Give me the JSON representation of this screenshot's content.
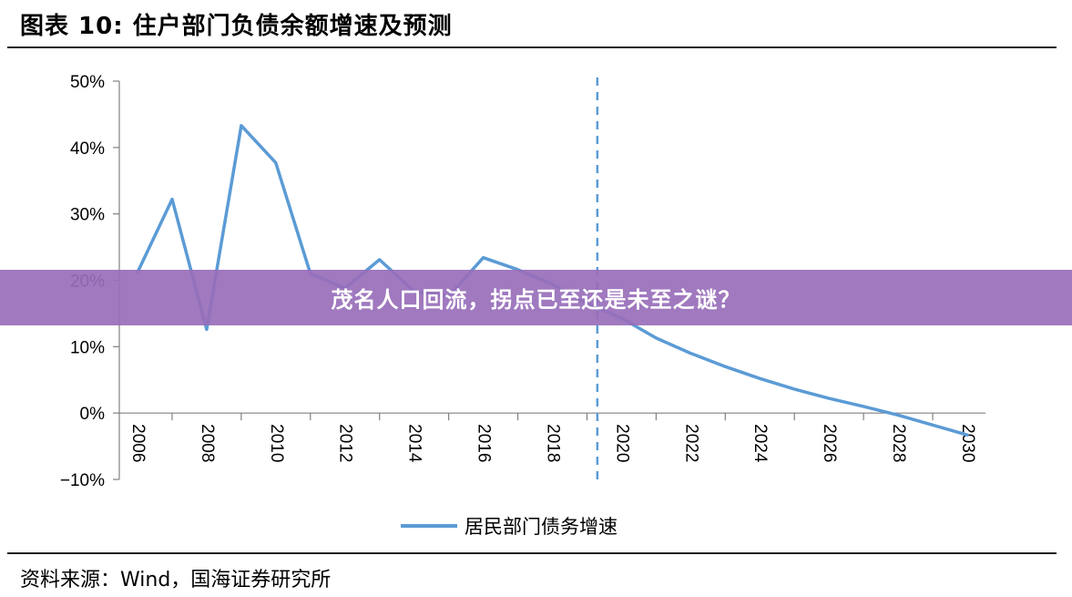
{
  "header": {
    "title": "图表 10:  住户部门负债余额增速及预测"
  },
  "banner": {
    "text": "茂名人口回流，拐点已至还是未至之谜？"
  },
  "footer": {
    "source": "资料来源：Wind，国海证券研究所"
  },
  "colors": {
    "series": "#5b9bd5",
    "banner": "#986eba",
    "axis": "#808080"
  },
  "chart_data": {
    "type": "line",
    "title": "住户部门负债余额增速及预测",
    "ylim": [
      -10,
      50
    ],
    "yticks": [
      -10,
      0,
      10,
      20,
      30,
      40,
      50
    ],
    "ytick_labels": [
      "−10%",
      "0%",
      "10%",
      "20%",
      "30%",
      "40%",
      "50%"
    ],
    "xlim": [
      2006,
      2030
    ],
    "xticks": [
      2006,
      2008,
      2010,
      2012,
      2014,
      2016,
      2018,
      2020,
      2022,
      2024,
      2026,
      2028,
      2030
    ],
    "xtick_labels": [
      "2006",
      "2008",
      "2010",
      "2012",
      "2014",
      "2016",
      "2018",
      "2020",
      "2022",
      "2024",
      "2026",
      "2028",
      "2030"
    ],
    "grid": false,
    "legend_position": "bottom",
    "forecast_divider_x": 2019.3,
    "series": [
      {
        "name": "居民部门债务增速",
        "x": [
          2006,
          2007,
          2008,
          2009,
          2010,
          2011,
          2012,
          2013,
          2014,
          2015,
          2016,
          2017,
          2018,
          2019,
          2020,
          2021,
          2022,
          2023,
          2024,
          2025,
          2026,
          2027,
          2028,
          2029,
          2030
        ],
        "y": [
          21.2,
          32.2,
          12.6,
          43.3,
          37.7,
          21.0,
          18.8,
          23.1,
          18.3,
          17.6,
          23.4,
          21.6,
          19.4,
          16.5,
          14.3,
          11.3,
          9.0,
          7.0,
          5.2,
          3.6,
          2.2,
          1.0,
          -0.3,
          -1.8,
          -3.3
        ]
      }
    ]
  }
}
